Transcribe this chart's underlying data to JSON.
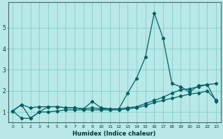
{
  "xlabel": "Humidex (Indice chaleur)",
  "background_color": "#b8e8e8",
  "grid_color": "#88cccc",
  "line_color": "#006060",
  "x": [
    0,
    1,
    2,
    3,
    4,
    5,
    6,
    7,
    8,
    9,
    10,
    11,
    12,
    13,
    14,
    15,
    16,
    17,
    18,
    19,
    20,
    21,
    22,
    23
  ],
  "series_main": [
    1.05,
    1.35,
    0.7,
    1.0,
    1.25,
    1.25,
    1.2,
    1.2,
    1.15,
    1.5,
    1.2,
    1.15,
    1.15,
    1.9,
    2.6,
    3.6,
    5.7,
    4.5,
    2.35,
    2.2,
    1.95,
    2.25,
    2.3,
    1.5
  ],
  "trend_upper": [
    1.05,
    1.35,
    1.2,
    1.25,
    1.25,
    1.25,
    1.2,
    1.2,
    1.15,
    1.2,
    1.15,
    1.15,
    1.15,
    1.2,
    1.25,
    1.4,
    1.55,
    1.7,
    1.9,
    2.05,
    2.1,
    2.2,
    2.3,
    2.35
  ],
  "trend_lower": [
    1.05,
    0.7,
    0.7,
    1.0,
    1.0,
    1.05,
    1.1,
    1.1,
    1.1,
    1.1,
    1.1,
    1.1,
    1.1,
    1.15,
    1.2,
    1.3,
    1.45,
    1.55,
    1.65,
    1.75,
    1.85,
    1.9,
    2.0,
    1.55
  ],
  "ylim": [
    0.5,
    6.2
  ],
  "yticks": [
    1,
    2,
    3,
    4,
    5
  ],
  "ytick_labels": [
    "1",
    "2",
    "3",
    "4",
    "5"
  ],
  "xlim": [
    -0.5,
    23.5
  ],
  "xticks": [
    0,
    1,
    2,
    3,
    4,
    5,
    6,
    7,
    8,
    9,
    10,
    11,
    12,
    13,
    14,
    15,
    16,
    17,
    18,
    19,
    20,
    21,
    22,
    23
  ]
}
